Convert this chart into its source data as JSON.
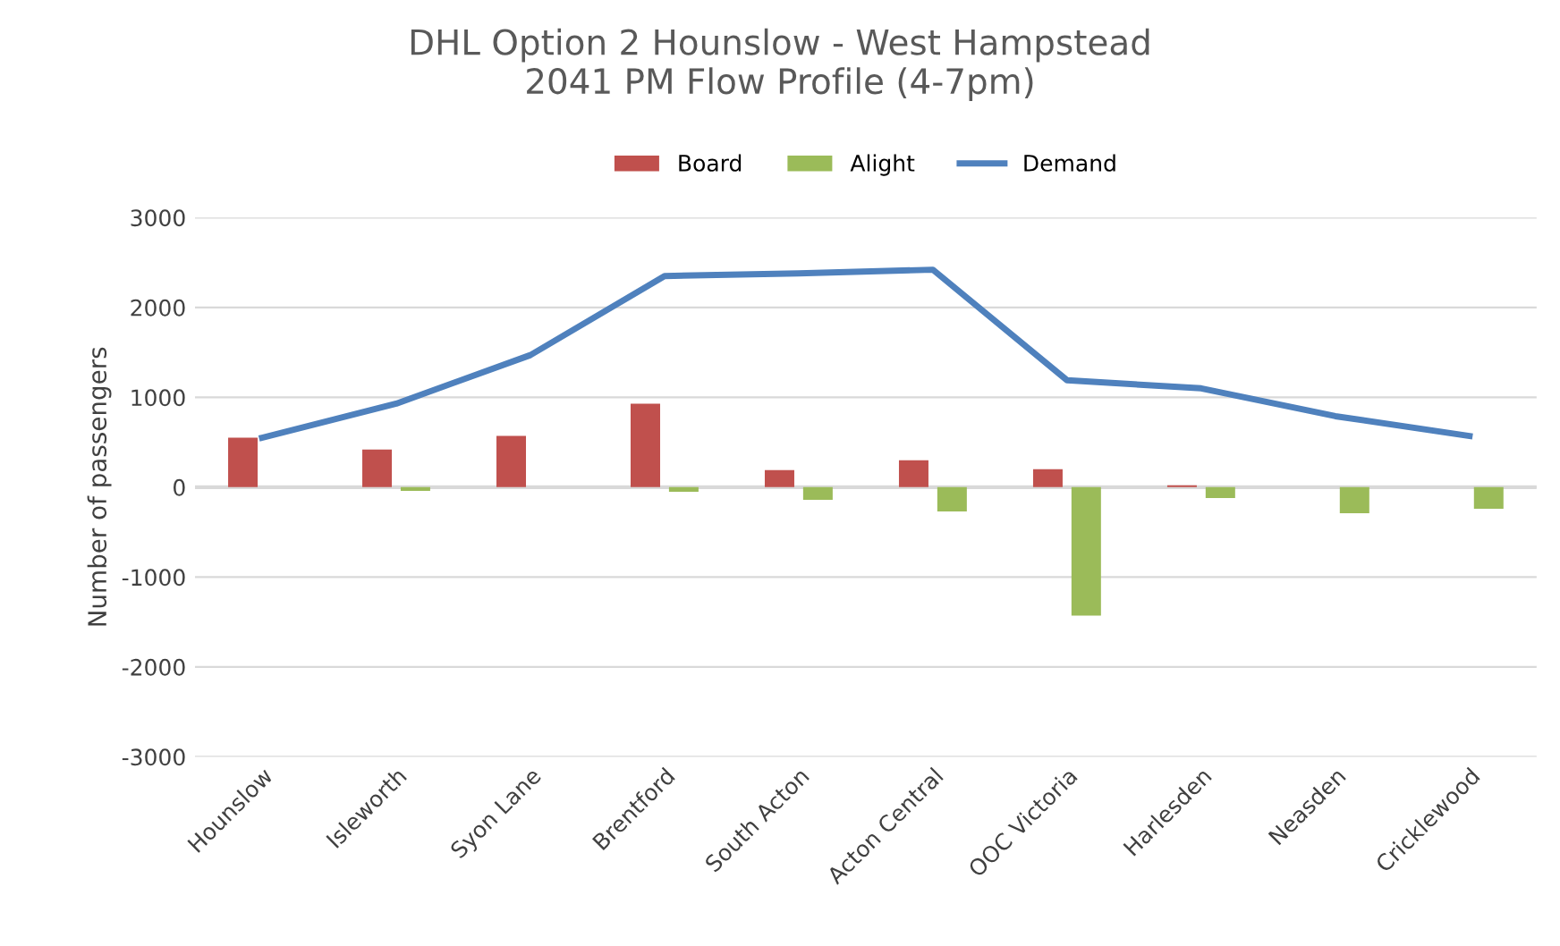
{
  "chart_data": {
    "type": "bar",
    "title": "DHL Option 2 Hounslow - West Hampstead\n2041 PM Flow Profile (4-7pm)",
    "ylabel": "Number of passengers",
    "categories": [
      "Hounslow",
      "Isleworth",
      "Syon Lane",
      "Brentford",
      "South Acton",
      "Acton Central",
      "OOC Victoria",
      "Harlesden",
      "Neasden",
      "Cricklewood"
    ],
    "series": [
      {
        "name": "Board",
        "color": "#c0504d",
        "values": [
          550,
          420,
          570,
          930,
          190,
          300,
          200,
          20,
          0,
          0
        ]
      },
      {
        "name": "Alight",
        "color": "#9bbb59",
        "values": [
          0,
          -40,
          0,
          -50,
          -140,
          -270,
          -1430,
          -120,
          -290,
          -240
        ]
      },
      {
        "name": "Demand",
        "type": "line",
        "color": "#4f81bd",
        "values": [
          550,
          930,
          1470,
          2350,
          2380,
          2420,
          1190,
          1100,
          790,
          570
        ]
      }
    ],
    "ylim": [
      -3000,
      3000
    ],
    "yticks": [
      -3000,
      -2000,
      -1000,
      0,
      1000,
      2000,
      3000
    ],
    "grid": "y",
    "legend": "top"
  }
}
